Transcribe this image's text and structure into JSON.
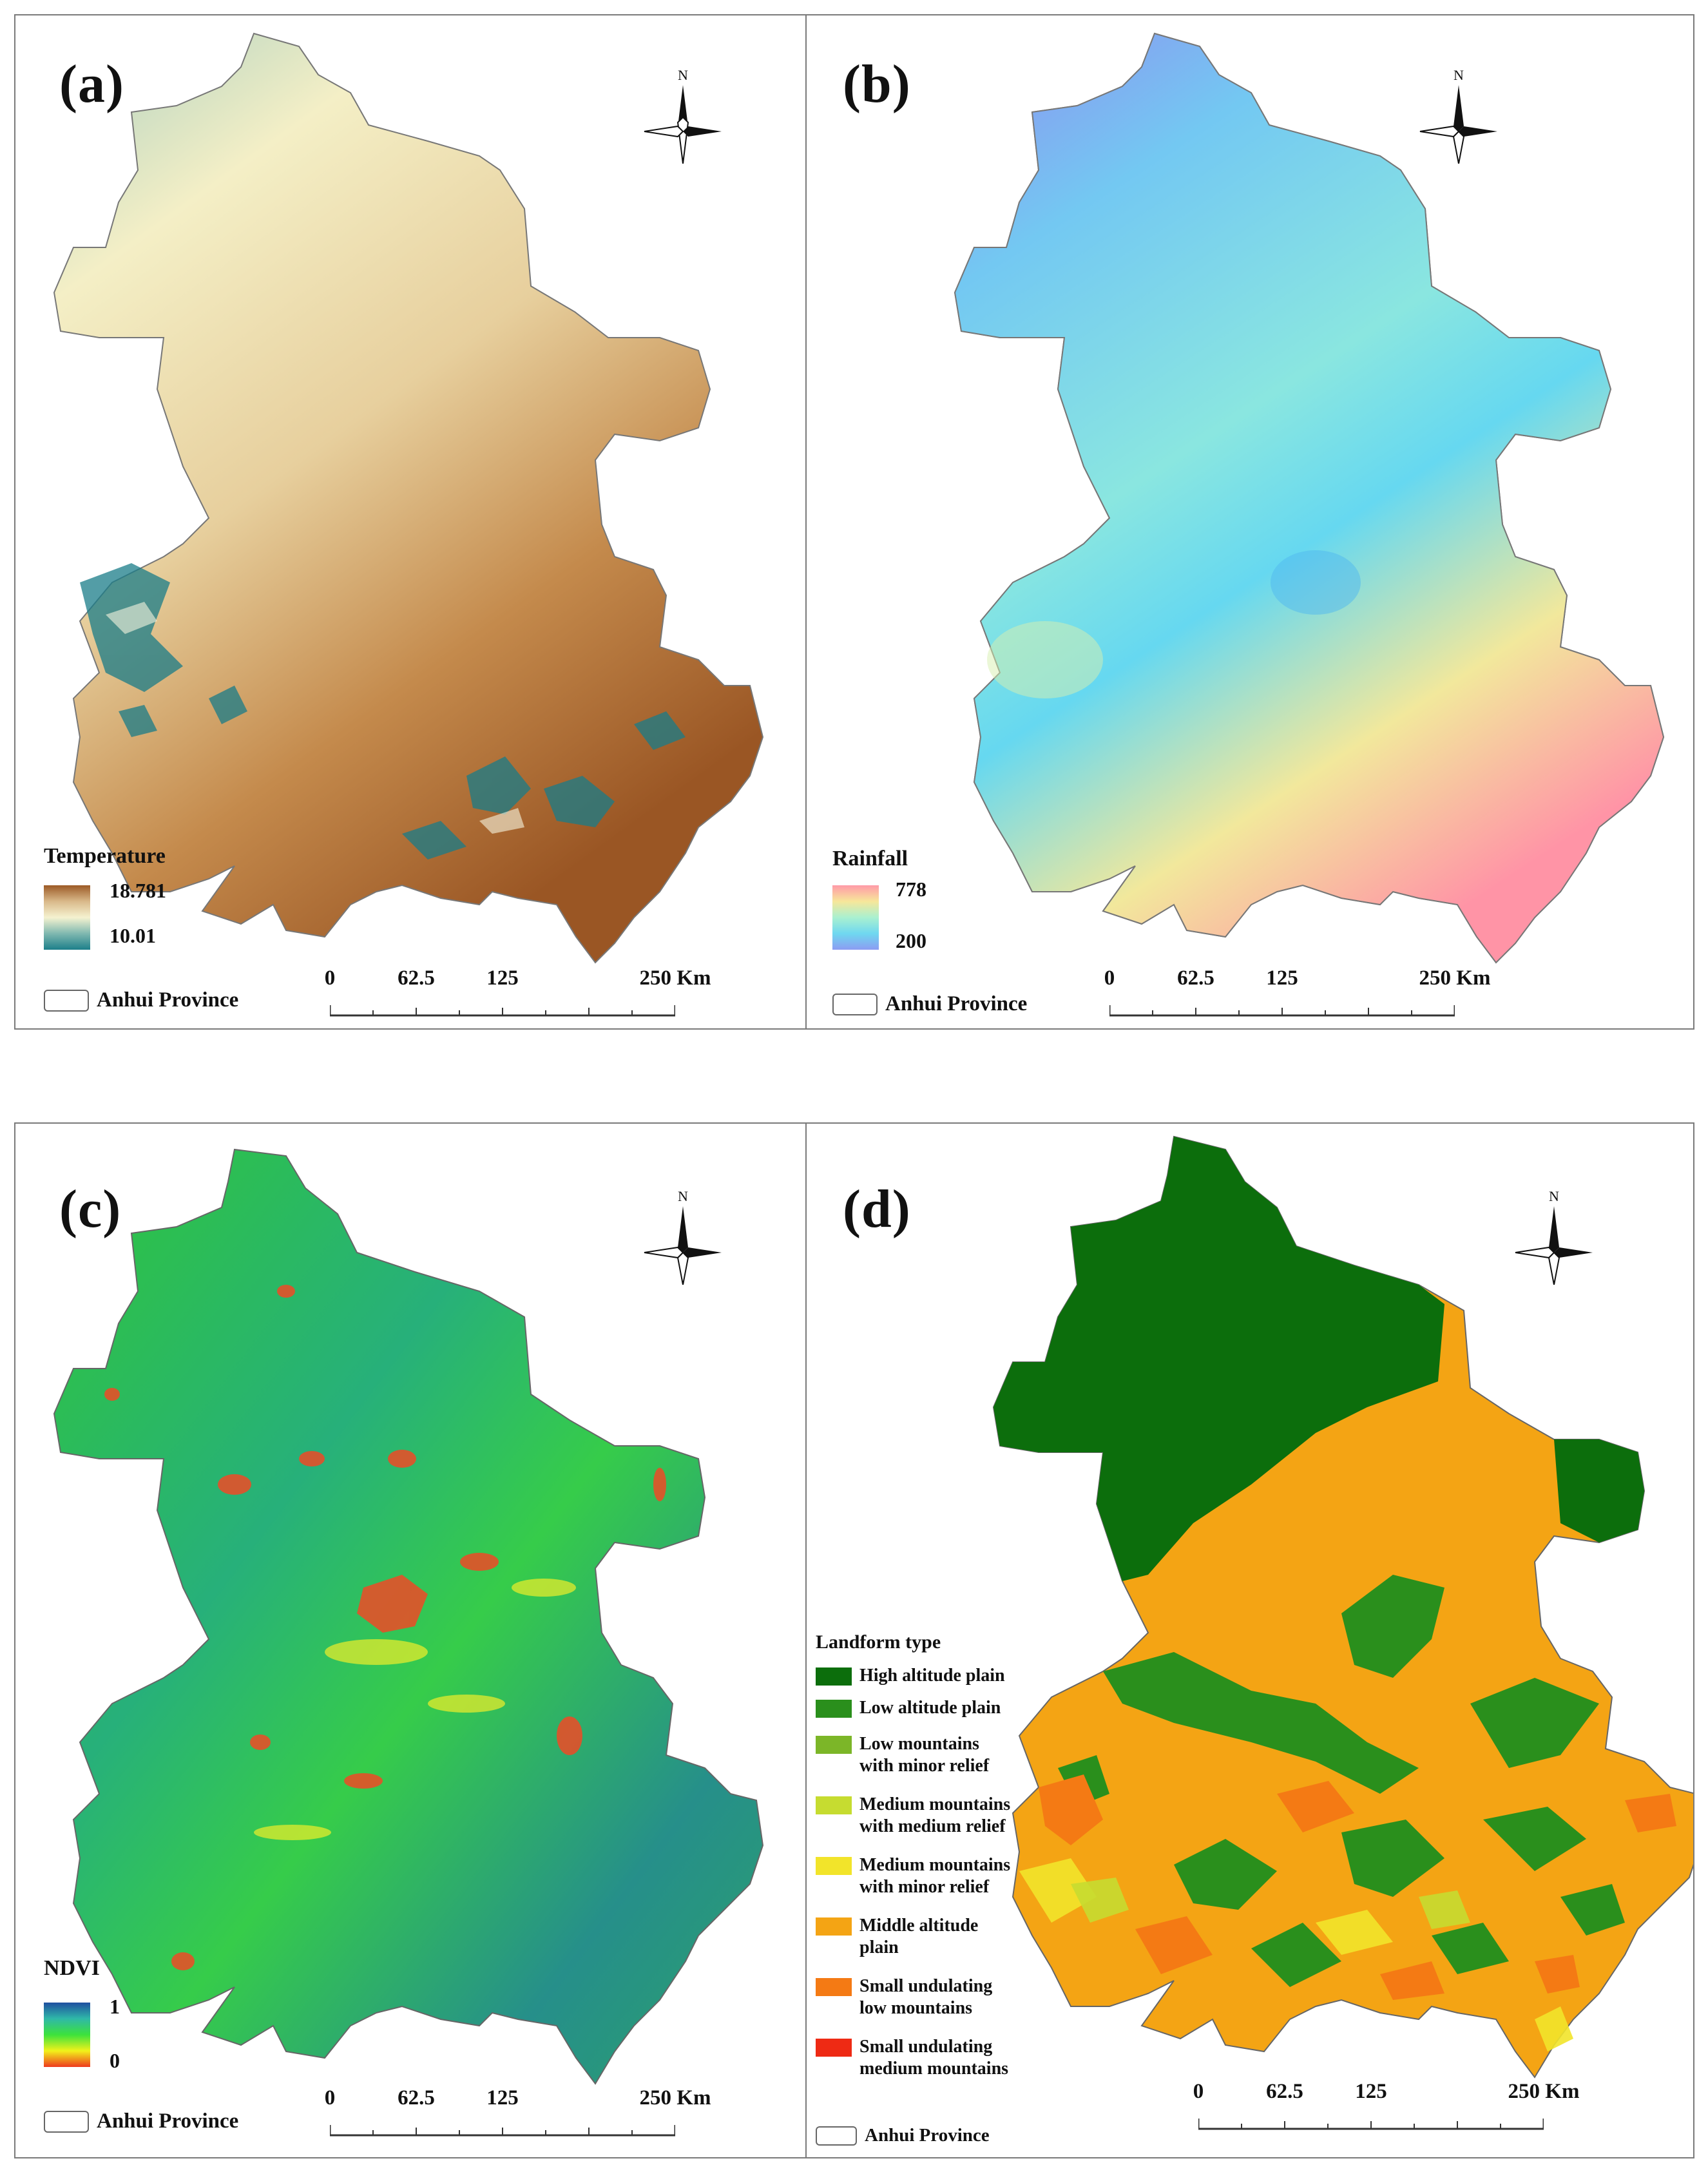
{
  "panels": [
    {
      "id": "a",
      "label": "(a)",
      "legend_title": "Temperature",
      "max": "18.781",
      "min": "10.01",
      "province": "Anhui Province",
      "ramp": [
        "#8c4a1a",
        "#d9b98a",
        "#f5f2d0",
        "#7fb8b0",
        "#1d7f8a"
      ]
    },
    {
      "id": "b",
      "label": "(b)",
      "legend_title": "Rainfall",
      "max": "778",
      "min": "200",
      "province": "Anhui Province",
      "ramp": [
        "#ff9aa8",
        "#f7e79a",
        "#a9f0d0",
        "#6fd8f0",
        "#8c9cf2"
      ]
    },
    {
      "id": "c",
      "label": "(c)",
      "legend_title": "NDVI",
      "max": "1",
      "min": "0",
      "province": "Anhui Province",
      "ramp": [
        "#1f4fa0",
        "#2fb8a8",
        "#3ce23c",
        "#f2f21a",
        "#ee3a1e"
      ]
    },
    {
      "id": "d",
      "label": "(d)",
      "legend_title": "Landform type",
      "province": "Anhui Province"
    }
  ],
  "compass_label": "N",
  "scale": {
    "ticks": [
      "0",
      "62.5",
      "125",
      "250 Km"
    ]
  },
  "landform": [
    {
      "label": "High altitude plain",
      "color": "#0c6e0c"
    },
    {
      "label": "Low altitude plain",
      "color": "#2a8f1c"
    },
    {
      "label": "Low mountains\nwith minor relief",
      "color": "#7cb628"
    },
    {
      "label": "Medium mountains\nwith medium relief",
      "color": "#c6dc30"
    },
    {
      "label": "Medium mountains\nwith minor relief",
      "color": "#f2e42a"
    },
    {
      "label": "Middle altitude\nplain",
      "color": "#f4a414"
    },
    {
      "label": "Small undulating\nlow mountains",
      "color": "#f47a14"
    },
    {
      "label": "Small undulating\nmedium mountains",
      "color": "#ee2a14"
    }
  ]
}
